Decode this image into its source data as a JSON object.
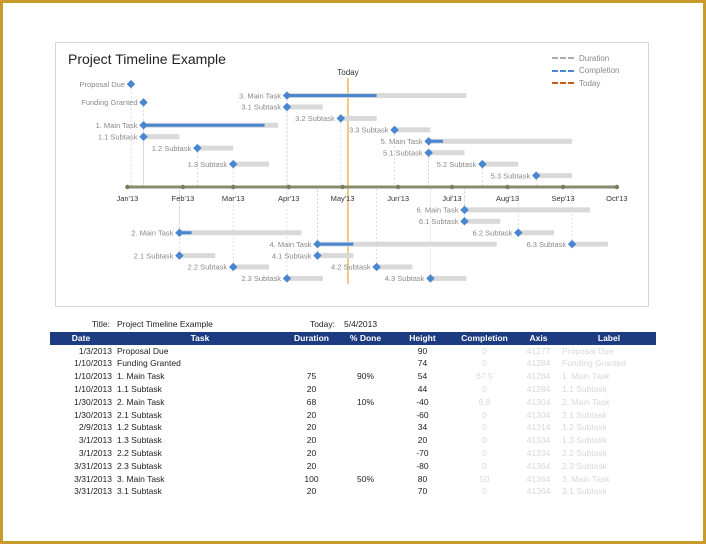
{
  "colors": {
    "duration": "#d9d9d9",
    "completion": "#4a86d0",
    "today": "#e8a33a",
    "axis": "#8a8a6c",
    "header": "#1c3b80",
    "border": "#c99a2c"
  },
  "chart_data": {
    "type": "timeline",
    "title": "Project Timeline Example",
    "today": {
      "label": "Today",
      "date": "5/4/2013"
    },
    "legend": {
      "placement": "top-right",
      "entries": [
        "Duration",
        "Completion",
        "Today"
      ]
    },
    "x_range": [
      "1/1/2013",
      "10/1/2013"
    ],
    "y_range": [
      -90,
      100
    ],
    "ticks": [
      "Jan'13",
      "Feb'13",
      "Mar'13",
      "Apr'13",
      "May'13",
      "Jun'13",
      "Jul'13",
      "Aug'13",
      "Sep'13",
      "Oct'13"
    ],
    "tasks": [
      {
        "label": "Proposal Due",
        "date": "1/3/2013",
        "duration": 0,
        "pct": 0,
        "height": 90
      },
      {
        "label": "Funding Granted",
        "date": "1/10/2013",
        "duration": 0,
        "pct": 0,
        "height": 74
      },
      {
        "label": "1. Main Task",
        "date": "1/10/2013",
        "duration": 75,
        "pct": 90,
        "height": 54
      },
      {
        "label": "1.1 Subtask",
        "date": "1/10/2013",
        "duration": 20,
        "pct": 0,
        "height": 44
      },
      {
        "label": "1.2 Subtask",
        "date": "2/9/2013",
        "duration": 20,
        "pct": 0,
        "height": 34
      },
      {
        "label": "1.3 Subtask",
        "date": "3/1/2013",
        "duration": 20,
        "pct": 0,
        "height": 20
      },
      {
        "label": "2. Main Task",
        "date": "1/30/2013",
        "duration": 68,
        "pct": 10,
        "height": -40
      },
      {
        "label": "2.1 Subtask",
        "date": "1/30/2013",
        "duration": 20,
        "pct": 0,
        "height": -60
      },
      {
        "label": "2.2 Subtask",
        "date": "3/1/2013",
        "duration": 20,
        "pct": 0,
        "height": -70
      },
      {
        "label": "2.3 Subtask",
        "date": "3/31/2013",
        "duration": 20,
        "pct": 0,
        "height": -80
      },
      {
        "label": "3. Main Task",
        "date": "3/31/2013",
        "duration": 100,
        "pct": 50,
        "height": 80
      },
      {
        "label": "3.1 Subtask",
        "date": "3/31/2013",
        "duration": 20,
        "pct": 0,
        "height": 70
      },
      {
        "label": "3.2 Subtask",
        "date": "4/30/2013",
        "duration": 20,
        "pct": 0,
        "height": 60
      },
      {
        "label": "3.3 Subtask",
        "date": "5/30/2013",
        "duration": 20,
        "pct": 0,
        "height": 50
      },
      {
        "label": "4. Main Task",
        "date": "4/17/2013",
        "duration": 100,
        "pct": 20,
        "height": -50
      },
      {
        "label": "4.1 Subtask",
        "date": "4/17/2013",
        "duration": 20,
        "pct": 0,
        "height": -60
      },
      {
        "label": "4.2 Subtask",
        "date": "5/20/2013",
        "duration": 20,
        "pct": 0,
        "height": -70
      },
      {
        "label": "4.3 Subtask",
        "date": "6/19/2013",
        "duration": 20,
        "pct": 0,
        "height": -80
      },
      {
        "label": "5. Main Task",
        "date": "6/18/2013",
        "duration": 80,
        "pct": 10,
        "height": 40
      },
      {
        "label": "5.1 Subtask",
        "date": "6/18/2013",
        "duration": 20,
        "pct": 0,
        "height": 30
      },
      {
        "label": "5.2 Subtask",
        "date": "7/18/2013",
        "duration": 20,
        "pct": 0,
        "height": 20
      },
      {
        "label": "5.3 Subtask",
        "date": "8/17/2013",
        "duration": 20,
        "pct": 0,
        "height": 10
      },
      {
        "label": "6. Main Task",
        "date": "7/8/2013",
        "duration": 70,
        "pct": 0,
        "height": -20
      },
      {
        "label": "6.1 Subtask",
        "date": "7/8/2013",
        "duration": 20,
        "pct": 0,
        "height": -30
      },
      {
        "label": "6.2 Subtask",
        "date": "8/7/2013",
        "duration": 20,
        "pct": 0,
        "height": -40
      },
      {
        "label": "6.3 Subtask",
        "date": "9/6/2013",
        "duration": 20,
        "pct": 0,
        "height": -50
      }
    ]
  },
  "table": {
    "title_label": "Title:",
    "title_value": "Project Timeline Example",
    "today_label": "Today:",
    "today_value": "5/4/2013",
    "headers": [
      "Date",
      "Task",
      "Duration",
      "% Done",
      "Height",
      "Completion",
      "Axis",
      "Label"
    ],
    "rows": [
      [
        "1/3/2013",
        "Proposal Due",
        "",
        "",
        "90",
        "0",
        "41277",
        "Proposal Due"
      ],
      [
        "1/10/2013",
        "Funding Granted",
        "",
        "",
        "74",
        "0",
        "41284",
        "Funding Granted"
      ],
      [
        "1/10/2013",
        "1. Main Task",
        "75",
        "90%",
        "54",
        "67.5",
        "41284",
        "1. Main Task"
      ],
      [
        "1/10/2013",
        "1.1 Subtask",
        "20",
        "",
        "44",
        "0",
        "41284",
        "1.1 Subtask"
      ],
      [
        "1/30/2013",
        "2. Main Task",
        "68",
        "10%",
        "-40",
        "6.8",
        "41304",
        "2. Main Task"
      ],
      [
        "1/30/2013",
        "2.1 Subtask",
        "20",
        "",
        "-60",
        "0",
        "41304",
        "2.1 Subtask"
      ],
      [
        "2/9/2013",
        "1.2 Subtask",
        "20",
        "",
        "34",
        "0",
        "41314",
        "1.2 Subtask"
      ],
      [
        "3/1/2013",
        "1.3 Subtask",
        "20",
        "",
        "20",
        "0",
        "41334",
        "1.3 Subtask"
      ],
      [
        "3/1/2013",
        "2.2 Subtask",
        "20",
        "",
        "-70",
        "0",
        "41334",
        "2.2 Subtask"
      ],
      [
        "3/31/2013",
        "2.3 Subtask",
        "20",
        "",
        "-80",
        "0",
        "41364",
        "2.3 Subtask"
      ],
      [
        "3/31/2013",
        "3. Main Task",
        "100",
        "50%",
        "80",
        "50",
        "41364",
        "3. Main Task"
      ],
      [
        "3/31/2013",
        "3.1 Subtask",
        "20",
        "",
        "70",
        "0",
        "41364",
        "3.1 Subtask"
      ]
    ]
  }
}
